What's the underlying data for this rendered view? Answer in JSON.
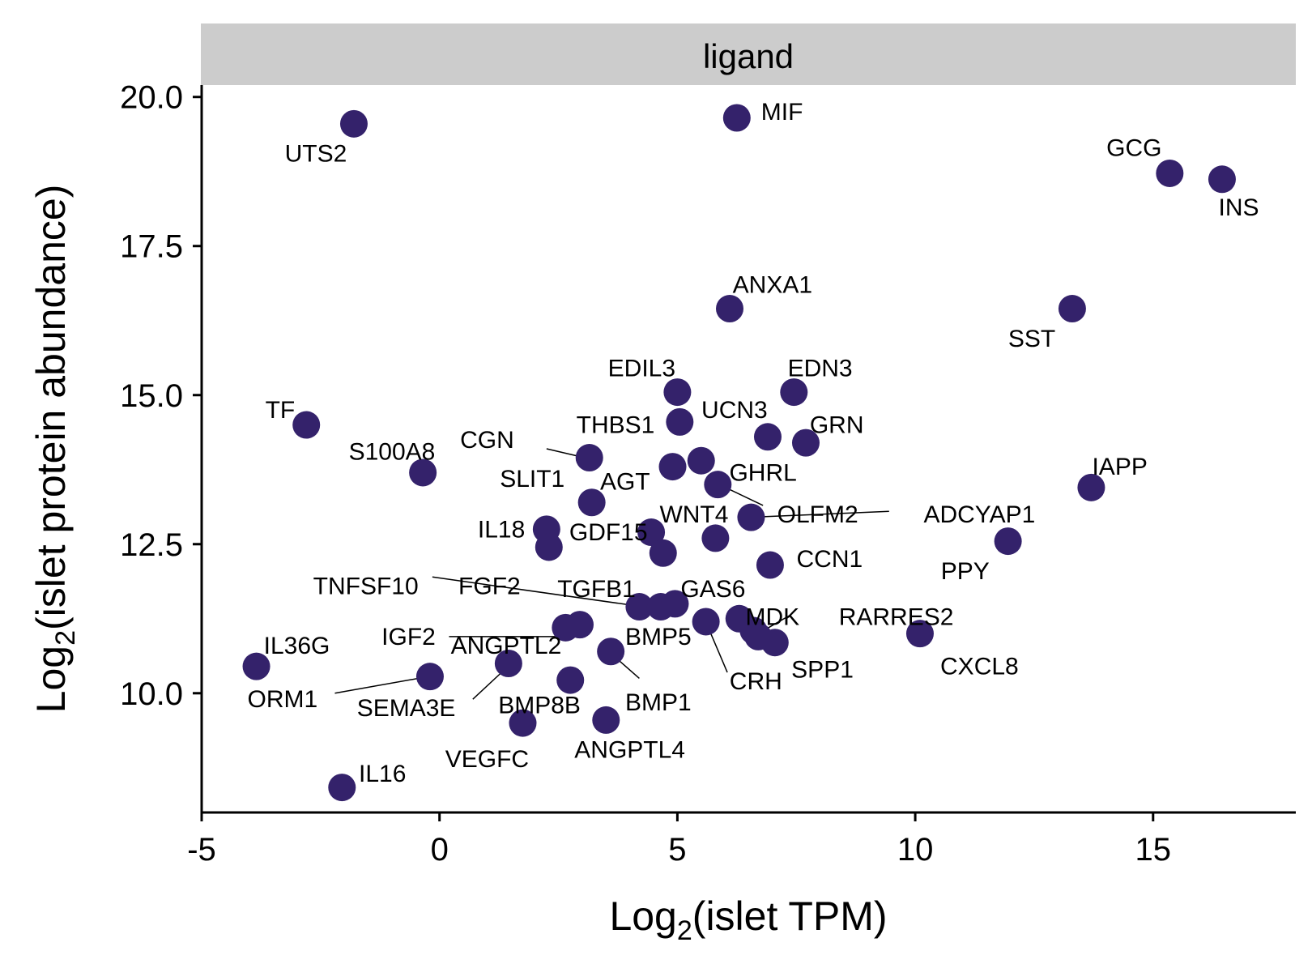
{
  "chart_data": {
    "type": "scatter",
    "facet_label": "ligand",
    "xlabel": {
      "prefix": "Log",
      "sub": "2",
      "suffix": "(islet TPM)"
    },
    "ylabel": {
      "prefix": "Log",
      "sub": "2",
      "suffix": "(islet protein abundance)"
    },
    "xlim": [
      -5,
      18
    ],
    "ylim": [
      8.0,
      20.2
    ],
    "x_ticks": [
      -5,
      0,
      5,
      10,
      15
    ],
    "x_tick_labels": [
      "-5",
      "0",
      "5",
      "10",
      "15"
    ],
    "y_ticks": [
      10.0,
      12.5,
      15.0,
      17.5,
      20.0
    ],
    "y_tick_labels": [
      "10.0",
      "12.5",
      "15.0",
      "17.5",
      "20.0"
    ],
    "grid": false,
    "legend": "none",
    "colors": {
      "point": "#34226b",
      "facet_strip": "#cccccc",
      "axis": "#000000"
    },
    "points": [
      {
        "label": "UTS2",
        "x": -1.8,
        "y": 19.55
      },
      {
        "label": "MIF",
        "x": 6.25,
        "y": 19.65
      },
      {
        "label": "GCG",
        "x": 15.35,
        "y": 18.72
      },
      {
        "label": "INS",
        "x": 16.45,
        "y": 18.62
      },
      {
        "label": "ANXA1",
        "x": 6.1,
        "y": 16.45
      },
      {
        "label": "SST",
        "x": 13.3,
        "y": 16.45
      },
      {
        "label": "EDIL3",
        "x": 5.0,
        "y": 15.05
      },
      {
        "label": "EDN3",
        "x": 7.45,
        "y": 15.05
      },
      {
        "label": "UCN3",
        "x": 5.05,
        "y": 14.55
      },
      {
        "label": "TF",
        "x": -2.8,
        "y": 14.5
      },
      {
        "label": "GRN",
        "x": 7.7,
        "y": 14.2
      },
      {
        "label": "THBS1",
        "x": 6.9,
        "y": 14.3
      },
      {
        "label": "CGN",
        "x": 3.15,
        "y": 13.95
      },
      {
        "label": "GHRL",
        "x": 5.5,
        "y": 13.9
      },
      {
        "label": "AGT",
        "x": 4.9,
        "y": 13.8
      },
      {
        "label": "S100A8",
        "x": -0.35,
        "y": 13.7
      },
      {
        "label": "IAPP",
        "x": 13.7,
        "y": 13.45
      },
      {
        "label": "OLFM2",
        "x": 5.85,
        "y": 13.5
      },
      {
        "label": "SLIT1",
        "x": 3.2,
        "y": 13.2
      },
      {
        "label": "ADCYAP1",
        "x": 6.55,
        "y": 12.95
      },
      {
        "label": "IL18",
        "x": 2.25,
        "y": 12.75
      },
      {
        "label": "WNT4",
        "x": 4.45,
        "y": 12.7
      },
      {
        "label": "GDF15",
        "x": 5.8,
        "y": 12.6
      },
      {
        "label": "PPY",
        "x": 11.95,
        "y": 12.55
      },
      {
        "label": "IL18",
        "x": 2.3,
        "y": 12.45
      },
      {
        "label": "GDF15",
        "x": 4.7,
        "y": 12.35
      },
      {
        "label": "CCN1",
        "x": 6.95,
        "y": 12.15
      },
      {
        "label": "TNFSF10",
        "x": 4.2,
        "y": 11.45
      },
      {
        "label": "FGF2",
        "x": 4.65,
        "y": 11.45
      },
      {
        "label": "TGFB1",
        "x": 4.95,
        "y": 11.5
      },
      {
        "label": "GAS6",
        "x": 5.6,
        "y": 11.2
      },
      {
        "label": "MDK",
        "x": 6.3,
        "y": 11.25
      },
      {
        "label": "RARRES2",
        "x": 6.6,
        "y": 11.05
      },
      {
        "label": "SPP1",
        "x": 7.05,
        "y": 10.85
      },
      {
        "label": "CXCL8",
        "x": 10.1,
        "y": 11.0
      },
      {
        "label": "IGF2",
        "x": 2.65,
        "y": 11.1
      },
      {
        "label": "BMP5",
        "x": 2.95,
        "y": 11.15
      },
      {
        "label": "CRH",
        "x": 6.7,
        "y": 10.95
      },
      {
        "label": "BMP1",
        "x": 3.6,
        "y": 10.7
      },
      {
        "label": "ANGPTL2",
        "x": 1.45,
        "y": 10.5
      },
      {
        "label": "IL36G",
        "x": -3.85,
        "y": 10.45
      },
      {
        "label": "ORM1",
        "x": -0.2,
        "y": 10.28
      },
      {
        "label": "BMP8B",
        "x": 2.75,
        "y": 10.22
      },
      {
        "label": "ANGPTL4",
        "x": 3.5,
        "y": 9.55
      },
      {
        "label": "VEGFC",
        "x": 1.75,
        "y": 9.5
      },
      {
        "label": "IL16",
        "x": -2.05,
        "y": 8.42
      }
    ],
    "labels": [
      {
        "text": "UTS2",
        "x": -2.6,
        "y": 19.05
      },
      {
        "text": "MIF",
        "x": 7.2,
        "y": 19.75
      },
      {
        "text": "GCG",
        "x": 14.6,
        "y": 19.15
      },
      {
        "text": "INS",
        "x": 16.8,
        "y": 18.15
      },
      {
        "text": "ANXA1",
        "x": 7.0,
        "y": 16.85
      },
      {
        "text": "SST",
        "x": 12.45,
        "y": 15.95
      },
      {
        "text": "EDIL3",
        "x": 4.25,
        "y": 15.45
      },
      {
        "text": "EDN3",
        "x": 8.0,
        "y": 15.45
      },
      {
        "text": "UCN3",
        "x": 6.2,
        "y": 14.75
      },
      {
        "text": "TF",
        "x": -3.35,
        "y": 14.75
      },
      {
        "text": "GRN",
        "x": 8.35,
        "y": 14.5
      },
      {
        "text": "THBS1",
        "x": 3.7,
        "y": 14.5
      },
      {
        "text": "CGN",
        "x": 1.0,
        "y": 14.25
      },
      {
        "text": "GHRL",
        "x": 6.8,
        "y": 13.7
      },
      {
        "text": "AGT",
        "x": 3.9,
        "y": 13.55
      },
      {
        "text": "S100A8",
        "x": -1.0,
        "y": 14.05
      },
      {
        "text": "IAPP",
        "x": 14.3,
        "y": 13.8
      },
      {
        "text": "OLFM2",
        "x": 7.95,
        "y": 13.0
      },
      {
        "text": "ADCYAP1",
        "x": 11.35,
        "y": 13.0
      },
      {
        "text": "SLIT1",
        "x": 1.95,
        "y": 13.6
      },
      {
        "text": "WNT4",
        "x": 5.35,
        "y": 13.0
      },
      {
        "text": "IL18",
        "x": 1.3,
        "y": 12.75
      },
      {
        "text": "GDF15",
        "x": 3.55,
        "y": 12.7
      },
      {
        "text": "PPY",
        "x": 11.05,
        "y": 12.05
      },
      {
        "text": "CCN1",
        "x": 8.2,
        "y": 12.25
      },
      {
        "text": "TNFSF10",
        "x": -1.55,
        "y": 11.8
      },
      {
        "text": "FGF2",
        "x": 1.05,
        "y": 11.8
      },
      {
        "text": "TGFB1",
        "x": 3.3,
        "y": 11.75
      },
      {
        "text": "GAS6",
        "x": 5.75,
        "y": 11.75
      },
      {
        "text": "MDK",
        "x": 7.0,
        "y": 11.28
      },
      {
        "text": "RARRES2",
        "x": 9.6,
        "y": 11.28
      },
      {
        "text": "IGF2",
        "x": -0.65,
        "y": 10.95
      },
      {
        "text": "BMP5",
        "x": 4.6,
        "y": 10.95
      },
      {
        "text": "CRH",
        "x": 6.65,
        "y": 10.2
      },
      {
        "text": "SPP1",
        "x": 8.05,
        "y": 10.4
      },
      {
        "text": "CXCL8",
        "x": 11.35,
        "y": 10.45
      },
      {
        "text": "BMP1",
        "x": 4.6,
        "y": 9.85
      },
      {
        "text": "ANGPTL2",
        "x": 1.4,
        "y": 10.8
      },
      {
        "text": "IL36G",
        "x": -3.0,
        "y": 10.8
      },
      {
        "text": "ORM1",
        "x": -3.3,
        "y": 9.9
      },
      {
        "text": "SEMA3E",
        "x": -0.7,
        "y": 9.75
      },
      {
        "text": "BMP8B",
        "x": 2.1,
        "y": 9.8
      },
      {
        "text": "ANGPTL4",
        "x": 4.0,
        "y": 9.05
      },
      {
        "text": "VEGFC",
        "x": 1.0,
        "y": 8.9
      },
      {
        "text": "IL16",
        "x": -1.2,
        "y": 8.65
      }
    ],
    "leaders": [
      {
        "from": [
          -0.15,
          11.95
        ],
        "to": [
          4.1,
          11.47
        ]
      },
      {
        "from": [
          0.2,
          10.95
        ],
        "to": [
          2.85,
          10.95
        ]
      },
      {
        "from": [
          -2.2,
          10.0
        ],
        "to": [
          -0.3,
          10.27
        ]
      },
      {
        "from": [
          0.7,
          9.9
        ],
        "to": [
          1.4,
          10.42
        ]
      },
      {
        "from": [
          2.25,
          14.1
        ],
        "to": [
          3.05,
          13.95
        ]
      },
      {
        "from": [
          5.75,
          13.55
        ],
        "to": [
          6.8,
          13.15
        ]
      },
      {
        "from": [
          6.5,
          12.95
        ],
        "to": [
          9.45,
          13.05
        ]
      },
      {
        "from": [
          6.05,
          10.35
        ],
        "to": [
          5.65,
          11.1
        ]
      },
      {
        "from": [
          4.2,
          10.25
        ],
        "to": [
          3.7,
          10.6
        ]
      },
      {
        "from": [
          7.35,
          11.3
        ],
        "to": [
          6.7,
          11.0
        ]
      }
    ]
  }
}
